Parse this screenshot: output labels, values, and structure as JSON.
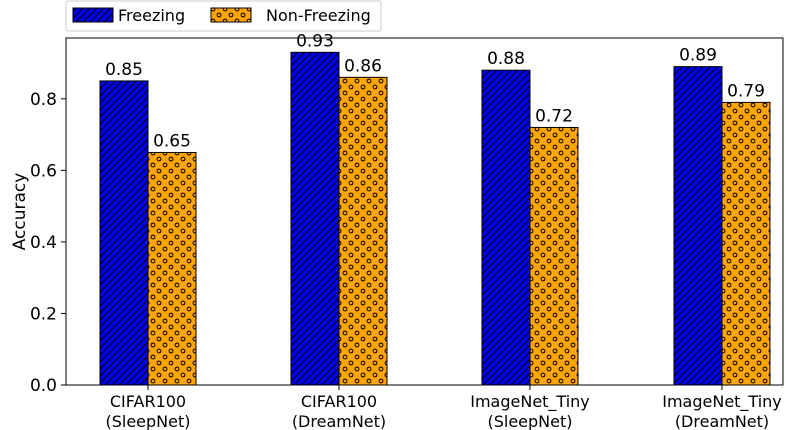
{
  "chart_data": {
    "type": "bar",
    "categories": [
      [
        "CIFAR100",
        "(SleepNet)"
      ],
      [
        "CIFAR100",
        "(DreamNet)"
      ],
      [
        "ImageNet_Tiny",
        "(SleepNet)"
      ],
      [
        "ImageNet_Tiny",
        "(DreamNet)"
      ]
    ],
    "series": [
      {
        "name": "Freezing",
        "values": [
          0.85,
          0.93,
          0.88,
          0.89
        ],
        "value_labels": [
          "0.85",
          "0.93",
          "0.88",
          "0.89"
        ],
        "color": "#0000ee",
        "hatch": "diagonal"
      },
      {
        "name": "Non-Freezing",
        "values": [
          0.65,
          0.86,
          0.72,
          0.79
        ],
        "value_labels": [
          "0.65",
          "0.86",
          "0.72",
          "0.79"
        ],
        "color": "#ffa500",
        "hatch": "circles"
      }
    ],
    "title": "",
    "xlabel": "",
    "ylabel": "Accuracy",
    "ylim": [
      0,
      0.97
    ],
    "yticks": [
      0.0,
      0.2,
      0.4,
      0.6,
      0.8
    ],
    "ytick_labels": [
      "0.0",
      "0.2",
      "0.4",
      "0.6",
      "0.8"
    ],
    "grid": false,
    "legend_position": "top-left, above plot"
  }
}
